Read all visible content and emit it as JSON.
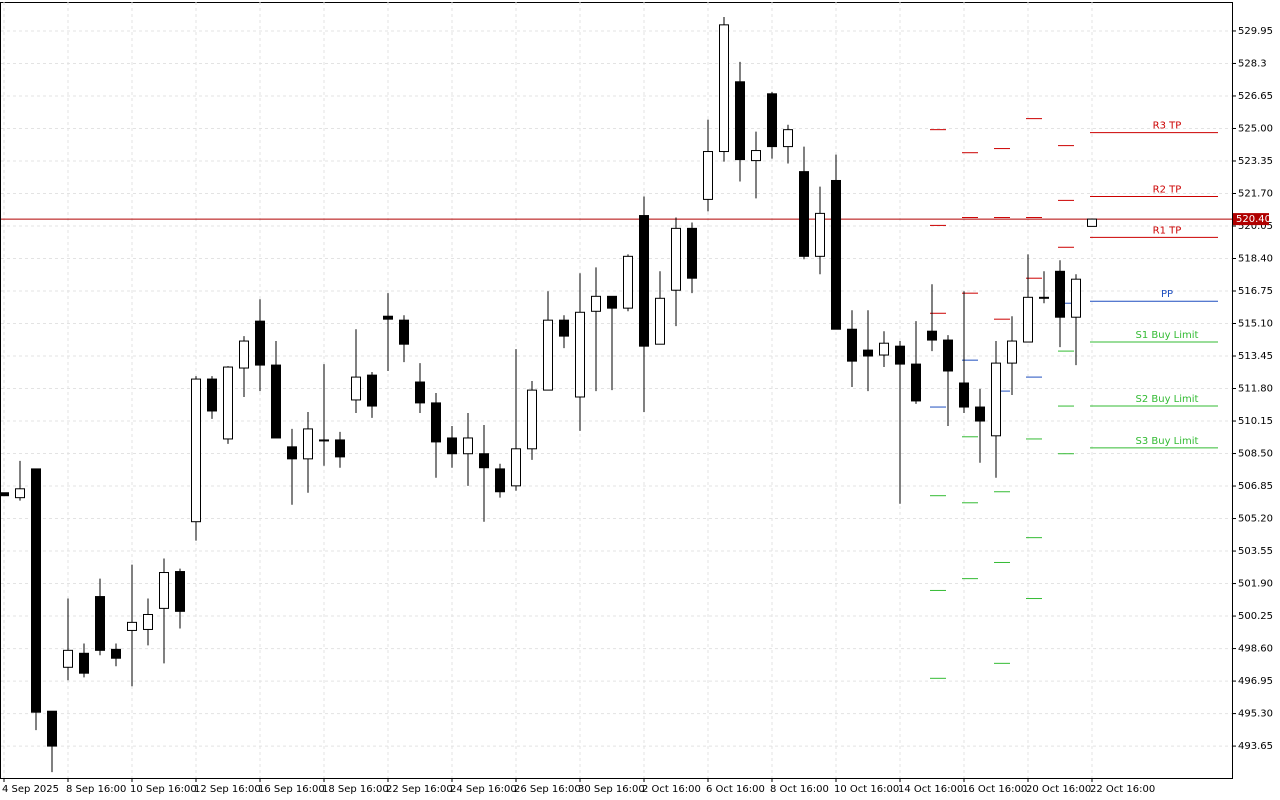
{
  "chart_data": {
    "type": "candlestick",
    "categories": [
      "4 Sep 2025",
      null,
      null,
      null,
      "8 Sep 16:00",
      null,
      null,
      null,
      "10 Sep 16:00",
      null,
      null,
      null,
      "12 Sep 16:00",
      null,
      null,
      null,
      "16 Sep 16:00",
      null,
      null,
      null,
      "18 Sep 16:00",
      null,
      null,
      null,
      "22 Sep 16:00",
      null,
      null,
      null,
      "24 Sep 16:00",
      null,
      null,
      null,
      "26 Sep 16:00",
      null,
      null,
      null,
      "30 Sep 16:00",
      null,
      null,
      null,
      "2 Oct 16:00",
      null,
      null,
      null,
      "6 Oct 16:00",
      null,
      null,
      null,
      "8 Oct 16:00",
      null,
      null,
      null,
      "10 Oct 16:00",
      null,
      null,
      null,
      "14 Oct 16:00",
      null,
      null,
      null,
      "16 Oct 16:00",
      null,
      null,
      null,
      "20 Oct 16:00",
      null,
      null,
      null,
      "22 Oct 16:00"
    ],
    "open": [
      506.51,
      506.26,
      507.72,
      495.42,
      497.65,
      498.36,
      501.24,
      498.56,
      499.52,
      499.57,
      500.64,
      502.51,
      505.04,
      512.28,
      509.24,
      512.84,
      515.22,
      512.99,
      508.84,
      508.23,
      509.19,
      509.19,
      511.22,
      512.48,
      515.47,
      515.27,
      512.13,
      511.07,
      509.29,
      508.49,
      508.49,
      507.72,
      506.86,
      508.74,
      511.72,
      515.27,
      511.37,
      515.72,
      516.48,
      515.88,
      520.58,
      514.05,
      516.79,
      519.93,
      521.4,
      523.83,
      527.37,
      523.37,
      526.76,
      524.08,
      522.81,
      518.51,
      522.36,
      514.81,
      513.75,
      513.5,
      513.95,
      513.04,
      514.71,
      514.26,
      512.08,
      510.86,
      509.4,
      513.09,
      514.16,
      516.43,
      517.75,
      515.42,
      520.03
    ],
    "high": [
      506.51,
      508.13,
      507.72,
      495.42,
      501.14,
      498.86,
      502.15,
      498.86,
      502.86,
      501.14,
      503.17,
      502.66,
      512.43,
      512.43,
      512.94,
      514.46,
      516.33,
      514.21,
      509.75,
      510.61,
      513.04,
      509.6,
      514.81,
      512.64,
      516.64,
      515.52,
      513.09,
      511.57,
      509.9,
      510.56,
      509.95,
      507.98,
      513.8,
      512.18,
      516.74,
      515.52,
      517.65,
      517.95,
      516.48,
      518.61,
      521.55,
      517.75,
      520.48,
      520.23,
      525.45,
      530.66,
      528.38,
      524.84,
      526.86,
      525.19,
      524.08,
      522.05,
      523.67,
      515.77,
      515.77,
      514.71,
      514.21,
      515.22,
      517.09,
      514.51,
      516.74,
      511.78,
      514.21,
      515.47,
      518.61,
      517.75,
      518.31,
      517.6,
      520.43
    ],
    "low": [
      506.36,
      506.11,
      494.46,
      492.33,
      496.99,
      497.14,
      498.26,
      497.7,
      496.69,
      498.76,
      497.85,
      499.62,
      504.08,
      510.26,
      508.99,
      511.37,
      511.67,
      509.29,
      505.9,
      506.51,
      507.88,
      507.78,
      510.56,
      510.31,
      512.69,
      513.14,
      510.56,
      507.27,
      507.78,
      506.86,
      505.04,
      506.26,
      506.61,
      508.18,
      511.72,
      513.85,
      509.65,
      511.67,
      511.72,
      515.72,
      510.61,
      514.05,
      514.97,
      516.64,
      520.79,
      523.32,
      522.31,
      521.45,
      523.47,
      523.22,
      518.36,
      517.6,
      514.81,
      511.88,
      511.67,
      512.89,
      505.95,
      511.02,
      513.7,
      509.9,
      510.56,
      508.03,
      507.27,
      511.47,
      514.16,
      516.13,
      513.9,
      512.99,
      520.03
    ],
    "close": [
      506.36,
      506.71,
      495.37,
      493.65,
      498.51,
      497.35,
      498.51,
      498.11,
      499.93,
      500.33,
      502.46,
      500.49,
      512.28,
      510.66,
      512.89,
      514.21,
      512.99,
      509.29,
      508.23,
      509.75,
      509.17,
      508.33,
      512.38,
      510.91,
      515.32,
      514.05,
      511.07,
      509.09,
      508.49,
      509.29,
      507.78,
      506.56,
      508.74,
      511.72,
      515.27,
      514.46,
      515.67,
      516.48,
      515.88,
      518.51,
      513.95,
      516.38,
      519.93,
      517.4,
      523.83,
      530.26,
      523.42,
      523.88,
      524.08,
      524.94,
      518.51,
      520.69,
      514.81,
      513.19,
      513.45,
      514.1,
      513.04,
      511.17,
      514.26,
      512.69,
      510.86,
      510.15,
      513.09,
      514.21,
      516.43,
      516.41,
      515.42,
      517.35,
      520.4
    ],
    "up_color": "#ffffff",
    "down_color": "#000000",
    "ylim": [
      492.03,
      531.42
    ],
    "yticks": [
      529.95,
      528.3,
      526.65,
      {
        "value": 525,
        "label": "525.00"
      },
      523.35,
      {
        "value": 521.7,
        "label": "521.70"
      },
      520.05,
      {
        "value": 518.4,
        "label": "518.40"
      },
      516.75,
      {
        "value": 515.1,
        "label": "515.10"
      },
      513.45,
      {
        "value": 511.8,
        "label": "511.80"
      },
      510.15,
      {
        "value": 508.5,
        "label": "508.50"
      },
      506.85,
      {
        "value": 505.2,
        "label": "505.20"
      },
      503.55,
      {
        "value": 501.9,
        "label": "501.90"
      },
      500.25,
      {
        "value": 498.6,
        "label": "498.60"
      },
      496.95,
      {
        "value": 495.3,
        "label": "495.30"
      },
      493.65
    ],
    "grid": true,
    "current_price": {
      "value": 520.4,
      "label": "520.40",
      "color": "#b00000"
    },
    "pivots": {
      "labels": [
        "R3 TP",
        "R2 TP",
        "R1 TP",
        "PP",
        "S1 Buy Limit",
        "S2 Buy Limit",
        "S3 Buy Limit"
      ],
      "values": [
        524.79,
        521.55,
        519.47,
        516.23,
        514.16,
        510.91,
        508.79
      ],
      "colors": [
        "#cc0000",
        "#cc0000",
        "#cc0000",
        "#1f4fbf",
        "#33bb33",
        "#33bb33",
        "#33bb33"
      ]
    },
    "pivot_history": [
      null,
      null,
      null,
      null,
      null,
      null,
      null,
      null,
      null,
      null,
      null,
      null,
      null,
      null,
      null,
      null,
      null,
      null,
      null,
      null,
      null,
      null,
      null,
      null,
      null,
      null,
      null,
      null,
      null,
      null,
      null,
      null,
      null,
      null,
      null,
      null,
      null,
      null,
      null,
      null,
      null,
      null,
      null,
      null,
      null,
      null,
      null,
      null,
      null,
      null,
      null,
      null,
      null,
      null,
      null,
      null,
      null,
      null,
      [
        524.94,
        520.08,
        515.62,
        510.86,
        506.36,
        501.55,
        497.09
      ],
      null,
      [
        523.77,
        520.48,
        516.64,
        513.24,
        509.35,
        506.0,
        502.15
      ],
      null,
      [
        523.98,
        520.48,
        515.32,
        511.67,
        506.56,
        502.97,
        497.85
      ],
      null,
      [
        525.5,
        520.48,
        517.4,
        512.38,
        509.24,
        504.23,
        501.14
      ],
      null,
      [
        524.13,
        521.35,
        518.97,
        516.13,
        513.7,
        510.91,
        508.49
      ],
      null,
      null
    ]
  }
}
